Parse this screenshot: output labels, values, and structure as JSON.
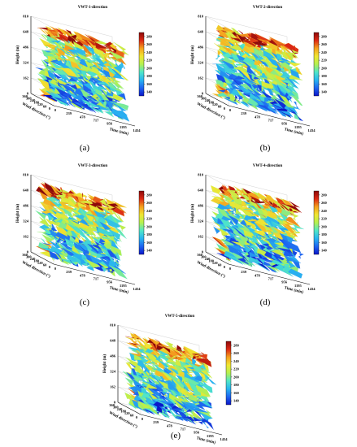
{
  "colors": {
    "colormap": [
      "#0a14c8",
      "#1e64f0",
      "#28b4f0",
      "#50e6c8",
      "#b4f050",
      "#f0e632",
      "#f5a01e",
      "#dc2814",
      "#8c0a0a"
    ]
  },
  "chart_data": [
    {
      "type": "surface3d",
      "panel_label": "(a)",
      "title": "VWT-1-direction",
      "xlabel": "Time (min)",
      "ylabel": "Wind direction (°)",
      "zlabel": "Height (m)",
      "time_ticks": [
        "0",
        "239",
        "478",
        "717",
        "956",
        "1195",
        "1434"
      ],
      "direction_ticks": [
        "0",
        "60",
        "120",
        "180",
        "240",
        "300",
        "360"
      ],
      "height_ticks": [
        "0",
        "162",
        "324",
        "486",
        "648",
        "810"
      ],
      "colorbar_ticks": [
        "280",
        "260",
        "240",
        "220",
        "200",
        "180",
        "160",
        "140"
      ],
      "xlim": [
        0,
        1434
      ],
      "ylim": [
        0,
        360
      ],
      "zlim": [
        0,
        810
      ],
      "clim": [
        130,
        290
      ]
    },
    {
      "type": "surface3d",
      "panel_label": "(b)",
      "title": "VWT-2-direction",
      "xlabel": "Time (min)",
      "ylabel": "Wind direction (°)",
      "zlabel": "Height (m)",
      "time_ticks": [
        "0",
        "239",
        "478",
        "717",
        "956",
        "1195",
        "1434"
      ],
      "direction_ticks": [
        "0",
        "60",
        "120",
        "180",
        "240",
        "300",
        "360"
      ],
      "height_ticks": [
        "0",
        "162",
        "324",
        "486",
        "648",
        "810"
      ],
      "colorbar_ticks": [
        "280",
        "260",
        "240",
        "220",
        "200",
        "180",
        "160",
        "140"
      ],
      "xlim": [
        0,
        1434
      ],
      "ylim": [
        0,
        360
      ],
      "zlim": [
        0,
        810
      ],
      "clim": [
        130,
        290
      ]
    },
    {
      "type": "surface3d",
      "panel_label": "(c)",
      "title": "VWT-3-direction",
      "xlabel": "Time (min)",
      "ylabel": "Wind direction (°)",
      "zlabel": "Height (m)",
      "time_ticks": [
        "0",
        "239",
        "478",
        "717",
        "956",
        "1195",
        "1434"
      ],
      "direction_ticks": [
        "0",
        "60",
        "120",
        "180",
        "240",
        "300",
        "360"
      ],
      "height_ticks": [
        "0",
        "162",
        "324",
        "486",
        "648",
        "810"
      ],
      "colorbar_ticks": [
        "280",
        "260",
        "240",
        "220",
        "200",
        "180",
        "160",
        "140"
      ],
      "xlim": [
        0,
        1434
      ],
      "ylim": [
        0,
        360
      ],
      "zlim": [
        0,
        810
      ],
      "clim": [
        130,
        290
      ]
    },
    {
      "type": "surface3d",
      "panel_label": "(d)",
      "title": "VWT-4-direction",
      "xlabel": "Time (min)",
      "ylabel": "Wind direction (°)",
      "zlabel": "Height (m)",
      "time_ticks": [
        "0",
        "239",
        "478",
        "717",
        "956",
        "1195",
        "1434"
      ],
      "direction_ticks": [
        "0",
        "60",
        "120",
        "180",
        "240",
        "300",
        "360"
      ],
      "height_ticks": [
        "0",
        "162",
        "324",
        "486",
        "648",
        "810"
      ],
      "colorbar_ticks": [
        "280",
        "260",
        "240",
        "220",
        "200",
        "180",
        "160",
        "140"
      ],
      "xlim": [
        0,
        1434
      ],
      "ylim": [
        0,
        360
      ],
      "zlim": [
        0,
        810
      ],
      "clim": [
        130,
        290
      ]
    },
    {
      "type": "surface3d",
      "panel_label": "(e)",
      "title": "VWT-5-direction",
      "xlabel": "Time (min)",
      "ylabel": "Wind direction (°)",
      "zlabel": "Height (m)",
      "time_ticks": [
        "0",
        "239",
        "478",
        "717",
        "956",
        "1195",
        "1434"
      ],
      "direction_ticks": [
        "0",
        "60",
        "120",
        "180",
        "240",
        "300",
        "360"
      ],
      "height_ticks": [
        "0",
        "162",
        "324",
        "486",
        "648",
        "810"
      ],
      "colorbar_ticks": [
        "280",
        "260",
        "240",
        "220",
        "200",
        "180",
        "160",
        "140"
      ],
      "xlim": [
        0,
        1434
      ],
      "ylim": [
        0,
        360
      ],
      "zlim": [
        0,
        810
      ],
      "clim": [
        130,
        290
      ]
    }
  ]
}
